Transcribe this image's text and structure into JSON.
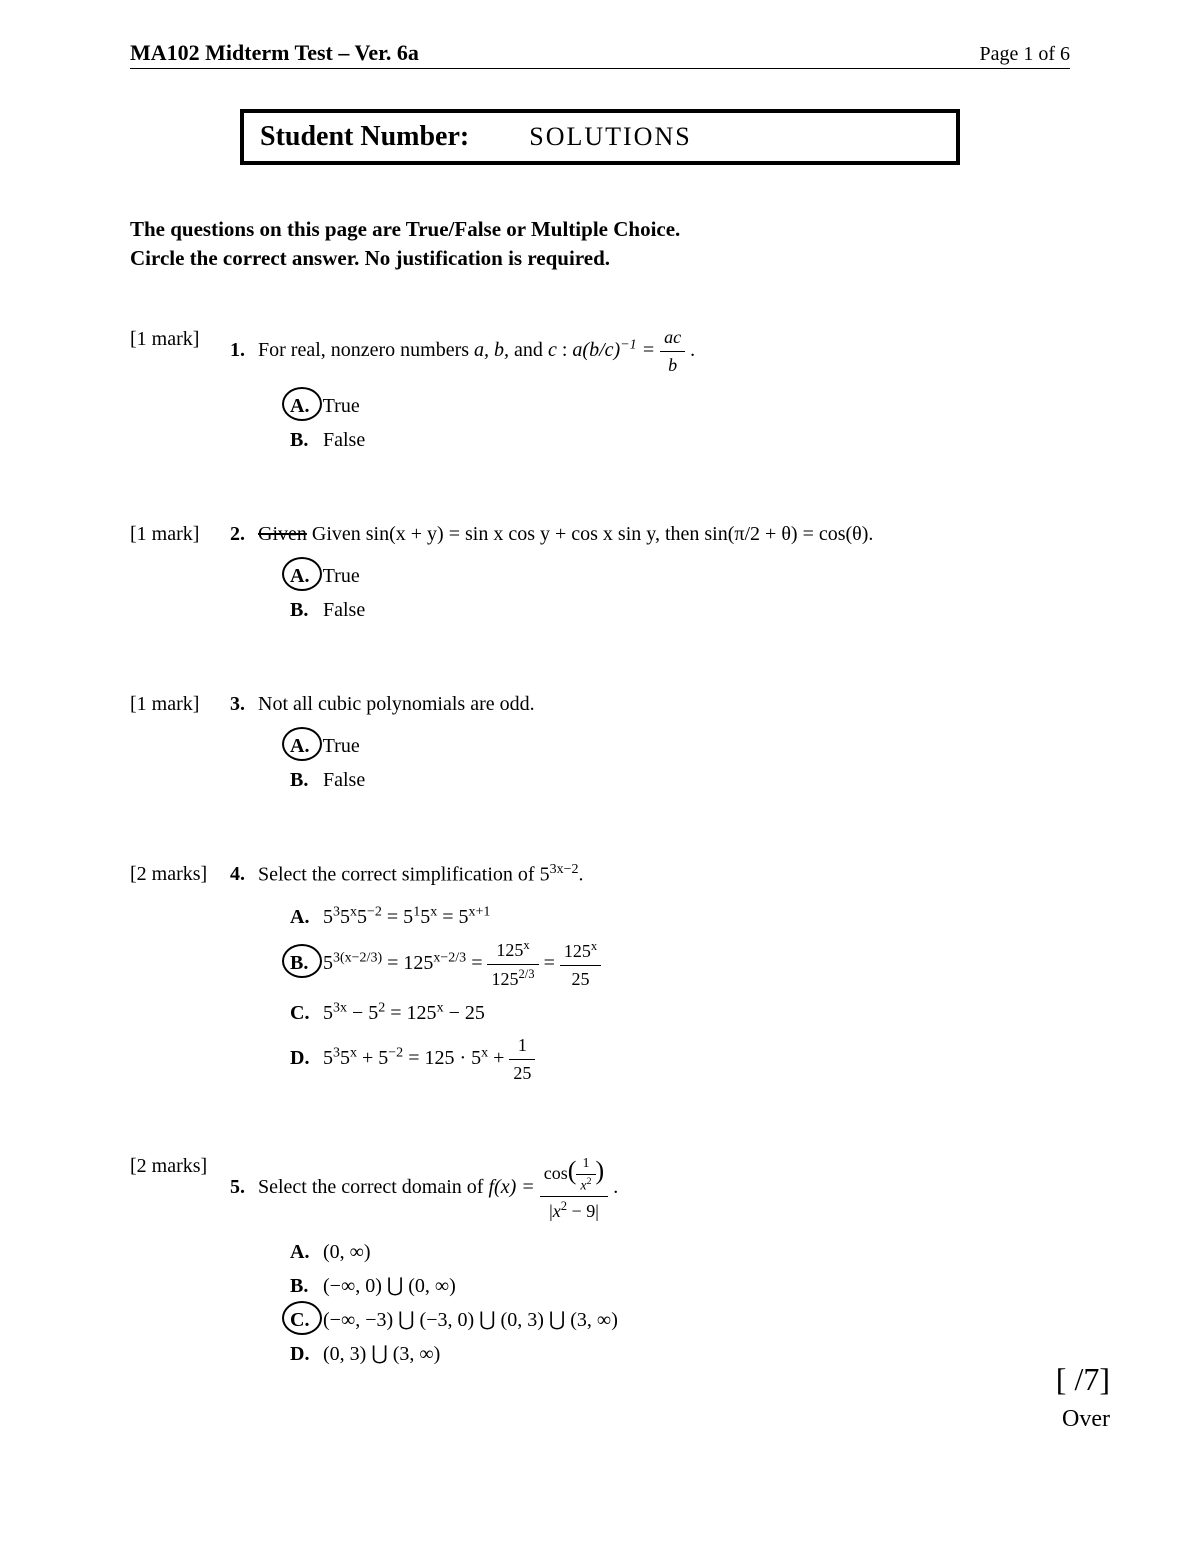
{
  "header": {
    "course_title": "MA102   Midterm Test – Ver. 6a",
    "page_label": "Page 1 of 6"
  },
  "student_box": {
    "label": "Student Number:",
    "value": "SOLUTIONS"
  },
  "instructions": {
    "line1": "The questions on this page are True/False or Multiple Choice.",
    "line2": "Circle the correct answer. No justification is required."
  },
  "q1": {
    "marks": "[1 mark]",
    "num": "1.",
    "stem_pre": "For real, nonzero numbers ",
    "stem_vars": "a, b,",
    "stem_mid": " and ",
    "stem_var_c": "c",
    "stem_colon": ": ",
    "optA_letter": "A.",
    "optA_text": "True",
    "optB_letter": "B.",
    "optB_text": "False"
  },
  "q2": {
    "marks": "[1 mark]",
    "num": "2.",
    "strike_word": "Given",
    "stem": " Given sin(x + y) = sin x cos y + cos x sin y, then sin(π/2 + θ) = cos(θ).",
    "optA_letter": "A.",
    "optA_text": "True",
    "optB_letter": "B.",
    "optB_text": "False"
  },
  "q3": {
    "marks": "[1 mark]",
    "num": "3.",
    "stem": "Not all cubic polynomials are odd.",
    "optA_letter": "A.",
    "optA_text": "True",
    "optB_letter": "B.",
    "optB_text": "False"
  },
  "q4": {
    "marks": "[2 marks]",
    "num": "4.",
    "stem": "Select the correct simplification of 5",
    "stem_exp": "3x−2",
    "stem_end": ".",
    "optA_letter": "A.",
    "optB_letter": "B.",
    "optC_letter": "C.",
    "optD_letter": "D."
  },
  "q5": {
    "marks": "[2 marks]",
    "num": "5.",
    "stem_pre": "Select the correct domain of ",
    "optA_letter": "A.",
    "optA_text": "(0, ∞)",
    "optB_letter": "B.",
    "optB_text": "(−∞, 0) ⋃ (0, ∞)",
    "optC_letter": "C.",
    "optC_text": "(−∞, −3) ⋃ (−3, 0) ⋃ (0, 3) ⋃ (3, ∞)",
    "optD_letter": "D.",
    "optD_text": "(0, 3) ⋃ (3, ∞)"
  },
  "footer": {
    "score": "[        /7]",
    "over": "Over"
  }
}
